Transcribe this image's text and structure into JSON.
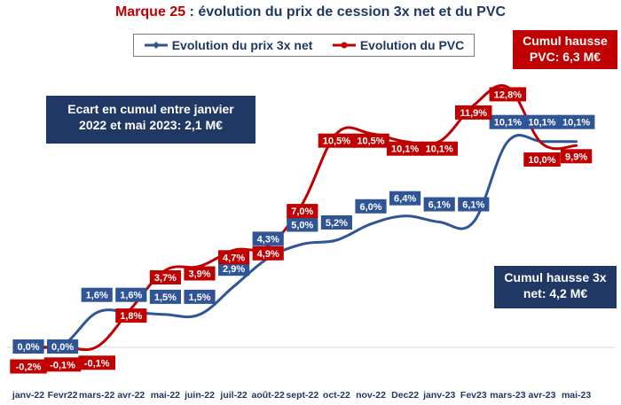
{
  "chart_data": {
    "type": "line",
    "title_brand": "Marque 25",
    "title_rest": " : évolution du prix de cession 3x net et du PVC",
    "categories": [
      "janv-22",
      "Fevr22",
      "mars-22",
      "avr-22",
      "mai-22",
      "juin-22",
      "juil-22",
      "août-22",
      "sept-22",
      "oct-22",
      "nov-22",
      "Dec22",
      "janv-23",
      "Fev23",
      "mars-23",
      "avr-23",
      "mai-23"
    ],
    "ylim": [
      -0.5,
      13.5
    ],
    "grid": false,
    "legend_position": "top",
    "series": [
      {
        "name": "Evolution du prix 3x net",
        "color": "#2f5597",
        "marker": "diamond",
        "values": [
          0.0,
          0.0,
          1.6,
          1.6,
          1.5,
          1.5,
          2.9,
          4.3,
          5.0,
          5.2,
          6.0,
          6.4,
          6.1,
          6.1,
          10.1,
          10.1,
          10.1
        ],
        "labels": [
          "0,0%",
          "0,0%",
          "1,6%",
          "1,6%",
          "1,5%",
          "1,5%",
          "2,9%",
          "4,3%",
          "5,0%",
          "5,2%",
          "6,0%",
          "6,4%",
          "6,1%",
          "6,1%",
          "10,1%",
          "10,1%",
          "10,1%"
        ]
      },
      {
        "name": "Evolution du PVC",
        "color": "#c00000",
        "marker": "circle",
        "values": [
          -0.2,
          -0.1,
          -0.1,
          1.8,
          3.7,
          3.9,
          4.7,
          4.9,
          7.0,
          10.5,
          10.5,
          10.1,
          10.1,
          11.9,
          12.8,
          10.0,
          9.9
        ],
        "labels": [
          "-0,2%",
          "-0,1%",
          "-0,1%",
          "1,8%",
          "3,7%",
          "3,9%",
          "4,7%",
          "4,9%",
          "7,0%",
          "10,5%",
          "10,5%",
          "10,1%",
          "10,1%",
          "11,9%",
          "12,8%",
          "10,0%",
          "9,9%"
        ]
      }
    ],
    "annotations": {
      "ecart": [
        "Ecart en cumul entre janvier",
        "2022 et mai 2023: 2,1 M€"
      ],
      "cumul_pvc": [
        "Cumul hausse",
        "PVC: 6,3 M€"
      ],
      "cumul_prix": [
        "Cumul hausse 3x",
        "net: 4,2 M€"
      ]
    }
  }
}
